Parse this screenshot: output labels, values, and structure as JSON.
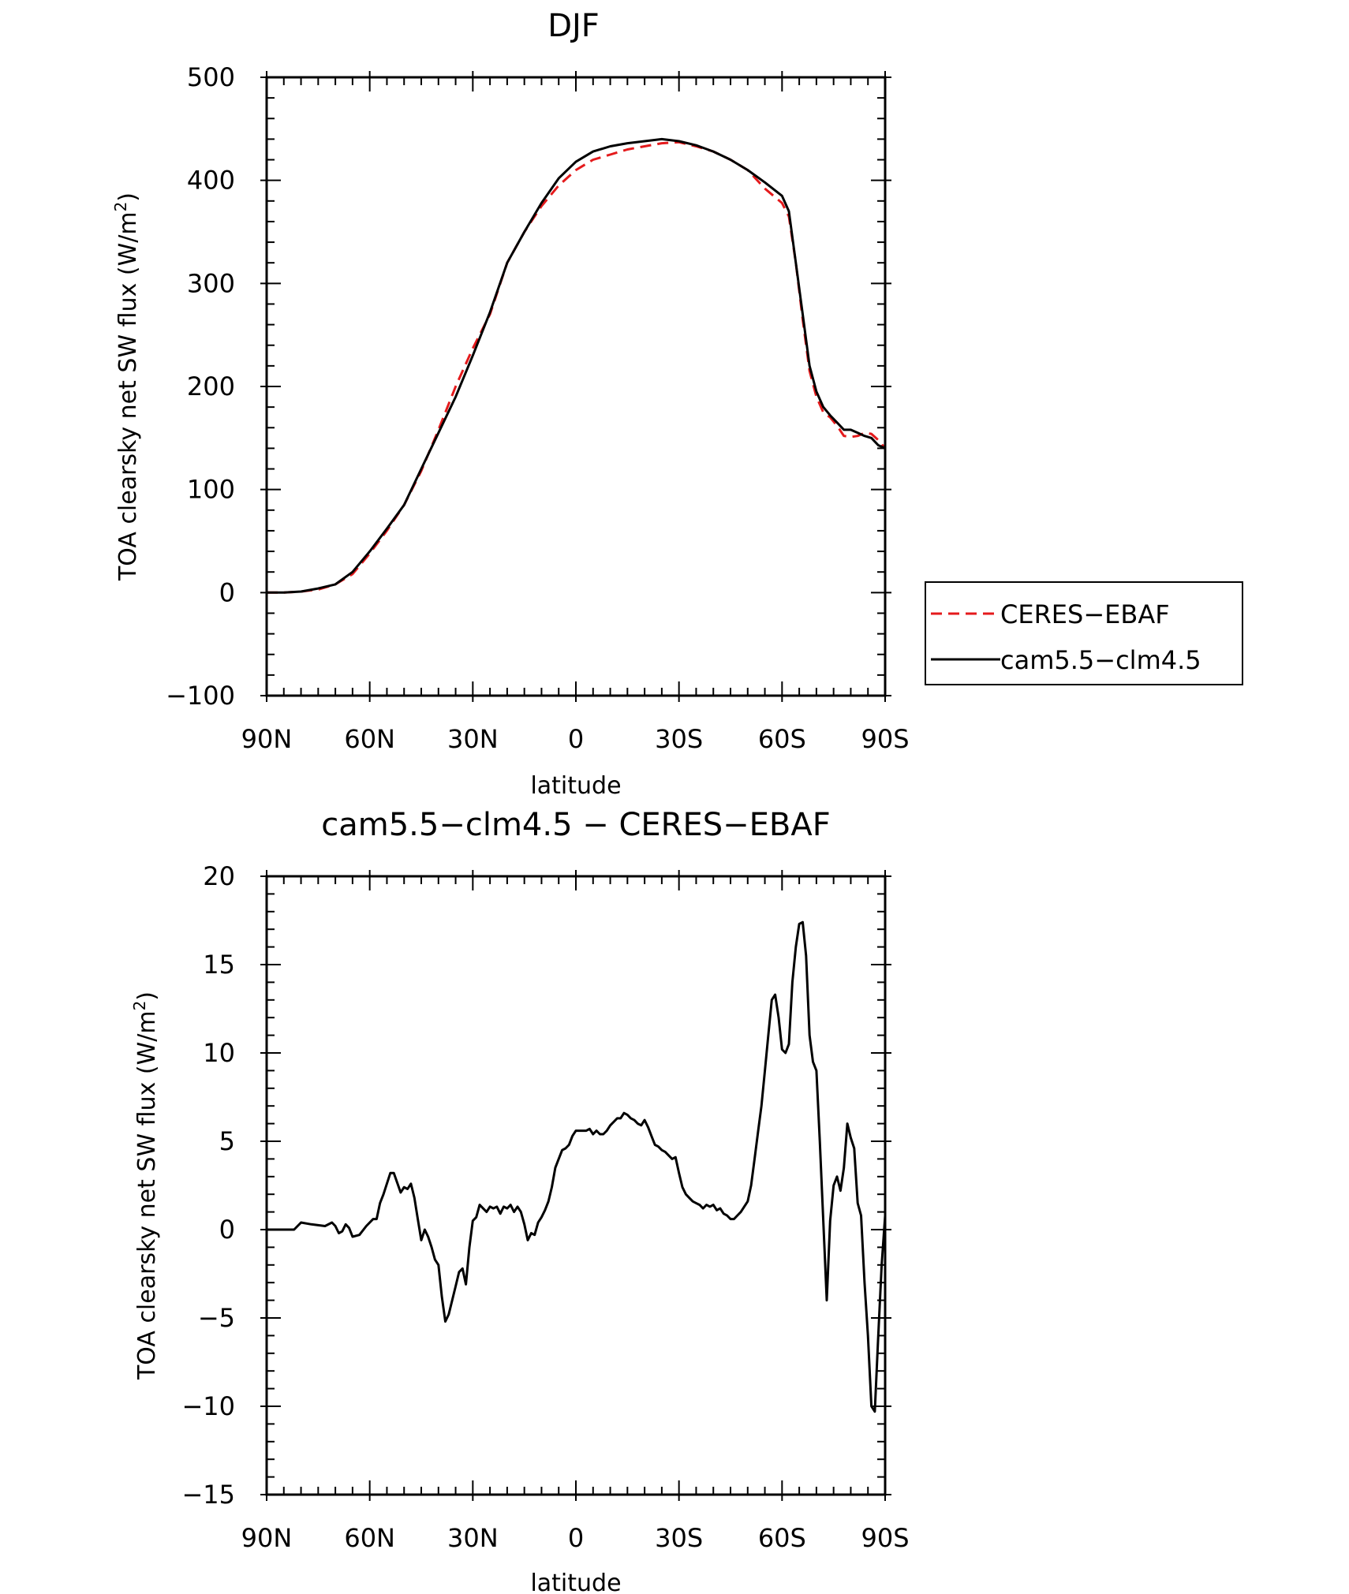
{
  "chart_data": [
    {
      "type": "line",
      "title": "DJF",
      "xlabel": "latitude",
      "ylabel": "TOA clearsky net SW flux (W/m",
      "ylabel_superscript": "2",
      "ylabel_suffix": ")",
      "xlim": [
        90,
        -90
      ],
      "ylim": [
        -100,
        500
      ],
      "x_ticks": [
        90,
        60,
        30,
        0,
        -30,
        -60,
        -90
      ],
      "x_tick_labels": [
        "90N",
        "60N",
        "30N",
        "0",
        "30S",
        "60S",
        "90S"
      ],
      "y_ticks": [
        -100,
        0,
        100,
        200,
        300,
        400,
        500
      ],
      "y_tick_labels": [
        "−100",
        "0",
        "100",
        "200",
        "300",
        "400",
        "500"
      ],
      "legend": {
        "placement": "right",
        "entries": [
          {
            "label": "CERES−EBAF",
            "color": "#e41a1c",
            "dash": "dashed"
          },
          {
            "label": "cam5.5−clm4.5",
            "color": "#000000",
            "dash": "solid"
          }
        ]
      },
      "series": [
        {
          "name": "CERES−EBAF",
          "color": "#e41a1c",
          "dash": "dashed",
          "x": [
            90,
            85,
            80,
            75,
            70,
            65,
            60,
            55,
            50,
            45,
            40,
            35,
            30,
            25,
            20,
            15,
            10,
            5,
            0,
            -5,
            -10,
            -15,
            -20,
            -25,
            -30,
            -35,
            -40,
            -45,
            -50,
            -55,
            -60,
            -62,
            -64,
            -66,
            -68,
            -70,
            -72,
            -74,
            -76,
            -78,
            -80,
            -82,
            -84,
            -86,
            -88,
            -90
          ],
          "y": [
            0,
            0,
            1,
            3,
            8,
            18,
            38,
            60,
            85,
            118,
            158,
            200,
            237,
            270,
            320,
            350,
            375,
            395,
            410,
            420,
            425,
            430,
            433,
            436,
            437,
            433,
            428,
            420,
            410,
            392,
            378,
            365,
            320,
            265,
            215,
            190,
            175,
            170,
            162,
            152,
            151,
            152,
            155,
            154,
            148,
            140
          ]
        },
        {
          "name": "cam5.5−clm4.5",
          "color": "#000000",
          "dash": "solid",
          "x": [
            90,
            85,
            80,
            75,
            70,
            65,
            60,
            55,
            50,
            45,
            40,
            35,
            30,
            25,
            20,
            15,
            10,
            5,
            0,
            -5,
            -10,
            -15,
            -20,
            -25,
            -30,
            -35,
            -40,
            -45,
            -50,
            -55,
            -60,
            -62,
            -64,
            -66,
            -68,
            -70,
            -72,
            -74,
            -76,
            -78,
            -80,
            -82,
            -84,
            -86,
            -88,
            -90
          ],
          "y": [
            0,
            0,
            1,
            4,
            8,
            20,
            40,
            62,
            85,
            120,
            155,
            190,
            230,
            272,
            320,
            350,
            378,
            402,
            418,
            428,
            433,
            436,
            438,
            440,
            438,
            434,
            428,
            420,
            410,
            398,
            385,
            370,
            320,
            270,
            220,
            195,
            180,
            172,
            165,
            158,
            158,
            155,
            152,
            150,
            143,
            140
          ]
        }
      ]
    },
    {
      "type": "line",
      "title": "cam5.5−clm4.5 − CERES−EBAF",
      "xlabel": "latitude",
      "ylabel": "TOA clearsky net SW flux (W/m",
      "ylabel_superscript": "2",
      "ylabel_suffix": ")",
      "xlim": [
        90,
        -90
      ],
      "ylim": [
        -15,
        20
      ],
      "x_ticks": [
        90,
        60,
        30,
        0,
        -30,
        -60,
        -90
      ],
      "x_tick_labels": [
        "90N",
        "60N",
        "30N",
        "0",
        "30S",
        "60S",
        "90S"
      ],
      "y_ticks": [
        -15,
        -10,
        -5,
        0,
        5,
        10,
        15,
        20
      ],
      "y_tick_labels": [
        "−15",
        "−10",
        "−5",
        "0",
        "5",
        "10",
        "15",
        "20"
      ],
      "series": [
        {
          "color": "#000000",
          "dash": "solid",
          "x": [
            90,
            82,
            81,
            80,
            77,
            73,
            71,
            70,
            69,
            68,
            67,
            66,
            65,
            63,
            61,
            59,
            58,
            57,
            56,
            55,
            54,
            53,
            51,
            50,
            49,
            48,
            47,
            46,
            45,
            44,
            43,
            42,
            41,
            40,
            39,
            38,
            37,
            36,
            35,
            34,
            33,
            32,
            31,
            30,
            29,
            28,
            27,
            26,
            25,
            24,
            23,
            22,
            21,
            20,
            19,
            18,
            17,
            16,
            15,
            14,
            13,
            12,
            11,
            10,
            9,
            8,
            7,
            6,
            5,
            4,
            3,
            2,
            1,
            0,
            -1,
            -2,
            -3,
            -4,
            -5,
            -6,
            -7,
            -8,
            -9,
            -10,
            -11,
            -12,
            -13,
            -14,
            -15,
            -16,
            -17,
            -18,
            -19,
            -20,
            -21,
            -22,
            -23,
            -24,
            -25,
            -26,
            -27,
            -28,
            -29,
            -30,
            -31,
            -32,
            -33,
            -34,
            -35,
            -36,
            -37,
            -38,
            -39,
            -40,
            -41,
            -42,
            -43,
            -44,
            -45,
            -46,
            -47,
            -48,
            -49,
            -50,
            -51,
            -52,
            -53,
            -54,
            -55,
            -56,
            -57,
            -58,
            -59,
            -60,
            -61,
            -62,
            -63,
            -64,
            -65,
            -66,
            -67,
            -68,
            -69,
            -70,
            -71,
            -72,
            -73,
            -74,
            -75,
            -76,
            -77,
            -78,
            -79,
            -80,
            -81,
            -82,
            -83,
            -84,
            -85,
            -86,
            -87,
            -88,
            -89,
            -90
          ],
          "y": [
            0,
            0,
            0.2,
            0.4,
            0.3,
            0.2,
            0.4,
            0.2,
            -0.2,
            -0.1,
            0.3,
            0.1,
            -0.4,
            -0.3,
            0.2,
            0.6,
            0.6,
            1.5,
            2.0,
            2.6,
            3.2,
            3.2,
            2.1,
            2.4,
            2.3,
            2.6,
            1.8,
            0.6,
            -0.6,
            0.0,
            -0.4,
            -1.0,
            -1.7,
            -2.0,
            -3.8,
            -5.2,
            -4.8,
            -4.0,
            -3.2,
            -2.4,
            -2.2,
            -3.1,
            -1.0,
            0.5,
            0.7,
            1.4,
            1.2,
            1.0,
            1.3,
            1.2,
            1.3,
            0.9,
            1.3,
            1.2,
            1.4,
            1.0,
            1.3,
            1.0,
            0.3,
            -0.6,
            -0.2,
            -0.3,
            0.4,
            0.7,
            1.1,
            1.6,
            2.4,
            3.5,
            4.0,
            4.5,
            4.6,
            4.8,
            5.3,
            5.6,
            5.6,
            5.6,
            5.6,
            5.7,
            5.4,
            5.6,
            5.4,
            5.4,
            5.6,
            5.9,
            6.1,
            6.3,
            6.3,
            6.6,
            6.5,
            6.3,
            6.2,
            6.0,
            5.9,
            6.2,
            5.8,
            5.3,
            4.8,
            4.7,
            4.5,
            4.4,
            4.2,
            4.0,
            4.1,
            3.2,
            2.4,
            2.0,
            1.8,
            1.6,
            1.5,
            1.4,
            1.2,
            1.4,
            1.3,
            1.4,
            1.1,
            1.2,
            0.9,
            0.8,
            0.6,
            0.6,
            0.8,
            1.0,
            1.3,
            1.6,
            2.5,
            4.0,
            5.5,
            7.0,
            9.0,
            11.0,
            13.0,
            13.3,
            12.0,
            10.2,
            10.0,
            10.5,
            14.0,
            16.0,
            17.3,
            17.4,
            15.5,
            11.0,
            9.5,
            9.0,
            5.0,
            0.5,
            -4.0,
            0.5,
            2.5,
            3.0,
            2.2,
            3.5,
            6.0,
            5.2,
            4.6,
            1.5,
            0.8,
            -3.0,
            -6.0,
            -10.0,
            -10.3,
            -6.0,
            -2.0,
            0.8
          ]
        }
      ]
    }
  ]
}
